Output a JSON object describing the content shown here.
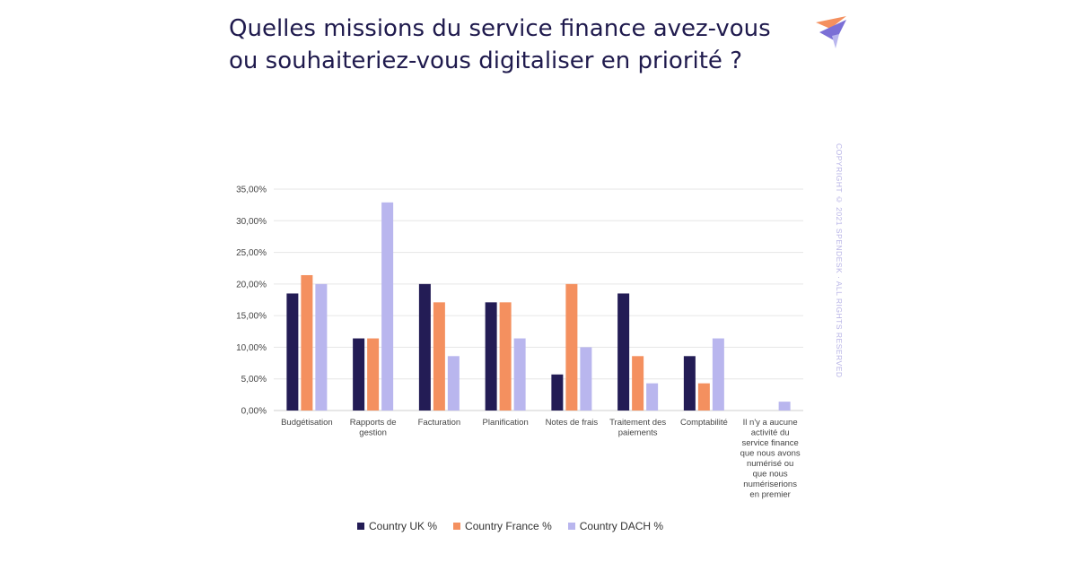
{
  "title_line1": "Quelles missions du service finance avez-vous",
  "title_line2": "ou souhaiteriez-vous digitaliser en priorité ?",
  "copyright": "COPYRIGHT © 2021 SPENDESK · ALL RIGHTS RESERVED",
  "colors": {
    "uk": "#231c55",
    "france": "#f4905f",
    "dach": "#b9b6ee",
    "title": "#1f1a4d"
  },
  "chart_data": {
    "type": "bar",
    "categories": [
      [
        "Budgétisation"
      ],
      [
        "Rapports de",
        "gestion"
      ],
      [
        "Facturation"
      ],
      [
        "Planification"
      ],
      [
        "Notes de frais"
      ],
      [
        "Traitement des",
        "paiements"
      ],
      [
        "Comptabilité"
      ],
      [
        "Il n'y a aucune",
        "activité du",
        "service finance",
        "que nous avons",
        "numérisé ou",
        "que nous",
        "numériserions",
        "en premier"
      ]
    ],
    "series": [
      {
        "name": "Country UK %",
        "color": "#231c55",
        "values": [
          18.5,
          11.4,
          20.0,
          17.1,
          5.7,
          18.5,
          8.6,
          0.0
        ]
      },
      {
        "name": "Country France %",
        "color": "#f4905f",
        "values": [
          21.4,
          11.4,
          17.1,
          17.1,
          20.0,
          8.6,
          4.3,
          0.0
        ]
      },
      {
        "name": "Country DACH %",
        "color": "#b9b6ee",
        "values": [
          20.0,
          32.9,
          8.6,
          11.4,
          10.0,
          4.3,
          11.4,
          1.4
        ]
      }
    ],
    "yticks": [
      "0,00%",
      "5,00%",
      "10,00%",
      "15,00%",
      "20,00%",
      "25,00%",
      "30,00%",
      "35,00%"
    ],
    "ylim": [
      0,
      35
    ],
    "grid": true,
    "legend_position": "bottom"
  }
}
